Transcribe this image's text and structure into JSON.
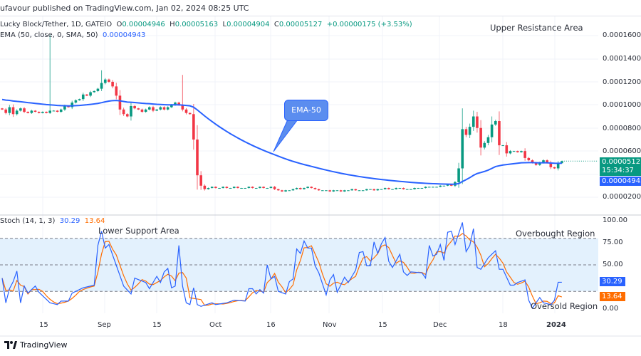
{
  "header": {
    "published": "ufavour published on TradingView.com, Jan 02, 2024 08:25 UTC"
  },
  "legend": {
    "symbol": "Lucky Block/Tether, 1D, GATEIO",
    "o_label": "O",
    "o": "0.00004946",
    "h_label": "H",
    "h": "0.00005163",
    "l_label": "L",
    "l": "0.00004904",
    "c_label": "C",
    "c": "0.00005127",
    "change": "+0.00000175 (+3.53%)",
    "ema_label": "EMA (50, close, 0, SMA, 50)",
    "ema_value": "0.00004943",
    "stoch_label": "Stoch (14, 1, 3)",
    "stoch_k": "30.29",
    "stoch_d": "13.64"
  },
  "annotations": {
    "upper": "Upper Resistance Area",
    "ema_callout": "EMA-50",
    "lower": "Lower Support Area",
    "overbought": "Overbought Region",
    "oversold": "Oversold Region"
  },
  "price_axis": [
    "0.00016000",
    "0.00014000",
    "0.00012000",
    "0.00010000",
    "0.00008000",
    "0.00006000",
    "0.00002000"
  ],
  "price_badges": {
    "last": "0.00005127",
    "countdown": "15:34:37",
    "ema": "0.00004943"
  },
  "stoch_axis": [
    "100.00",
    "75.00",
    "50.00",
    "0.00"
  ],
  "stoch_badges": {
    "k": "30.29",
    "d": "13.64"
  },
  "time_axis": [
    "15",
    "Sep",
    "15",
    "Oct",
    "16",
    "Nov",
    "15",
    "Dec",
    "18",
    "2024"
  ],
  "footer": {
    "brand": "TradingView"
  },
  "colors": {
    "up": "#089981",
    "down": "#f23645",
    "ema": "#2962ff",
    "stoch_k": "#2962ff",
    "stoch_d": "#ff6d00",
    "band": "#e3f1fd"
  },
  "chart_data": [
    {
      "type": "candlestick",
      "title": "Lucky Block/Tether, 1D, GATEIO",
      "x_start": "2023-08-04",
      "x_end": "2024-01-02",
      "ylim": [
        1.4e-05,
        0.00017
      ],
      "closes": [
        9.6e-05,
        9.3e-05,
        9.8e-05,
        9.2e-05,
        9.5e-05,
        9.7e-05,
        9.4e-05,
        9.3e-05,
        9.5e-05,
        9.4e-05,
        9.3e-05,
        9.4e-05,
        9.3e-05,
        9.5e-05,
        9.5e-05,
        9.4e-05,
        9.6e-05,
        9.9e-05,
        9.8e-05,
        0.000102,
        0.000104,
        0.000105,
        0.000109,
        0.000108,
        0.000111,
        0.000112,
        0.000114,
        0.000119,
        0.000122,
        0.00012,
        0.000116,
        0.000108,
        9.6e-05,
        9.2e-05,
        9e-05,
        9.9e-05,
        9.7e-05,
        9.6e-05,
        9.4e-05,
        9.6e-05,
        9.8e-05,
        9.5e-05,
        9.6e-05,
        9.8e-05,
        9.6e-05,
        9.8e-05,
        0.0001,
        0.000102,
        0.0001,
        9.6e-05,
        9.3e-05,
        9.2e-05,
        7e-05,
        3.9e-05,
        3e-05,
        2.7e-05,
        2.8e-05,
        2.9e-05,
        2.8e-05,
        2.8e-05,
        2.9e-05,
        2.8e-05,
        2.8e-05,
        2.9e-05,
        2.8e-05,
        2.8e-05,
        2.8e-05,
        2.9e-05,
        2.8e-05,
        2.8e-05,
        2.9e-05,
        2.8e-05,
        2.8e-05,
        2.9e-05,
        2.7e-05,
        2.6e-05,
        2.5e-05,
        2.6e-05,
        2.6e-05,
        2.7e-05,
        2.8e-05,
        2.7e-05,
        2.8e-05,
        2.9e-05,
        2.8e-05,
        2.7e-05,
        2.6e-05,
        2.6e-05,
        2.6e-05,
        2.5e-05,
        2.6e-05,
        2.6e-05,
        2.5e-05,
        2.6e-05,
        2.6e-05,
        2.7e-05,
        2.6e-05,
        2.6e-05,
        2.6e-05,
        2.7e-05,
        2.7e-05,
        2.6e-05,
        2.7e-05,
        2.7e-05,
        2.8e-05,
        2.7e-05,
        2.7e-05,
        2.8e-05,
        2.8e-05,
        2.7e-05,
        2.7e-05,
        2.7e-05,
        2.8e-05,
        2.8e-05,
        2.8e-05,
        2.9e-05,
        2.9e-05,
        2.9e-05,
        2.9e-05,
        3e-05,
        3e-05,
        3.1e-05,
        3e-05,
        3.3e-05,
        4.5e-05,
        7.9e-05,
        7.4e-05,
        8.1e-05,
        9e-05,
        8e-05,
        6.3e-05,
        6.7e-05,
        7.2e-05,
        8.3e-05,
        8.6e-05,
        6.5e-05,
        6.5e-05,
        5.8e-05,
        6e-05,
        6e-05,
        5.9e-05,
        6e-05,
        5.4e-05,
        5.2e-05,
        5e-05,
        4.8e-05,
        5e-05,
        5.2e-05,
        5e-05,
        4.6e-05,
        4.5e-05,
        4.95e-05,
        5.127e-05
      ],
      "notable_highs": {
        "2023-08-17": 0.000161,
        "2023-08-31": 0.00013,
        "2023-09-22": 0.000126,
        "2023-12-07": 9.7e-05,
        "2023-12-10": 9.5e-05,
        "2023-12-15": 9e-05
      },
      "ema": {
        "name": "EMA (50, close, 0, SMA, 50)",
        "last": 4.943e-05
      }
    },
    {
      "type": "line",
      "title": "Stoch (14, 1, 3)",
      "ylim": [
        0,
        100
      ],
      "bands": {
        "upper": 80,
        "middle": 50,
        "lower": 20
      },
      "k_points": [
        [
          "2023-08-04",
          35
        ],
        [
          "2023-08-05",
          7
        ],
        [
          "2023-08-06",
          23
        ],
        [
          "2023-08-07",
          31
        ],
        [
          "2023-08-08",
          43
        ],
        [
          "2023-08-09",
          7
        ],
        [
          "2023-08-10",
          26
        ],
        [
          "2023-08-11",
          18
        ],
        [
          "2023-08-13",
          26
        ],
        [
          "2023-08-14",
          19
        ],
        [
          "2023-08-15",
          15
        ],
        [
          "2023-08-17",
          7
        ],
        [
          "2023-08-19",
          5
        ],
        [
          "2023-08-20",
          9
        ],
        [
          "2023-08-22",
          9
        ],
        [
          "2023-08-23",
          18
        ],
        [
          "2023-08-26",
          24
        ],
        [
          "2023-08-29",
          27
        ],
        [
          "2023-08-30",
          72
        ],
        [
          "2023-08-31",
          88
        ],
        [
          "2023-09-01",
          69
        ],
        [
          "2023-09-02",
          73
        ],
        [
          "2023-09-06",
          26
        ],
        [
          "2023-09-08",
          17
        ],
        [
          "2023-09-09",
          35
        ],
        [
          "2023-09-12",
          30
        ],
        [
          "2023-09-13",
          23
        ],
        [
          "2023-09-15",
          37
        ],
        [
          "2023-09-16",
          30
        ],
        [
          "2023-09-17",
          42
        ],
        [
          "2023-09-18",
          46
        ],
        [
          "2023-09-19",
          24
        ],
        [
          "2023-09-20",
          26
        ],
        [
          "2023-09-21",
          72
        ],
        [
          "2023-09-22",
          26
        ],
        [
          "2023-09-23",
          7
        ],
        [
          "2023-09-24",
          5
        ],
        [
          "2023-09-25",
          24
        ],
        [
          "2023-09-26",
          5
        ],
        [
          "2023-09-27",
          3
        ],
        [
          "2023-09-30",
          7
        ],
        [
          "2023-10-01",
          5
        ],
        [
          "2023-10-04",
          7
        ],
        [
          "2023-10-06",
          10
        ],
        [
          "2023-10-09",
          9
        ],
        [
          "2023-10-10",
          23
        ],
        [
          "2023-10-11",
          23
        ],
        [
          "2023-10-12",
          17
        ],
        [
          "2023-10-13",
          22
        ],
        [
          "2023-10-14",
          18
        ],
        [
          "2023-10-15",
          50
        ],
        [
          "2023-10-16",
          34
        ],
        [
          "2023-10-17",
          37
        ],
        [
          "2023-10-18",
          20
        ],
        [
          "2023-10-20",
          17
        ],
        [
          "2023-10-21",
          31
        ],
        [
          "2023-10-22",
          34
        ],
        [
          "2023-10-23",
          68
        ],
        [
          "2023-10-24",
          63
        ],
        [
          "2023-10-25",
          77
        ],
        [
          "2023-10-26",
          69
        ],
        [
          "2023-10-27",
          69
        ],
        [
          "2023-10-28",
          49
        ],
        [
          "2023-10-29",
          41
        ],
        [
          "2023-10-31",
          16
        ],
        [
          "2023-11-01",
          33
        ],
        [
          "2023-11-02",
          39
        ],
        [
          "2023-11-03",
          19
        ],
        [
          "2023-11-05",
          36
        ],
        [
          "2023-11-06",
          30
        ],
        [
          "2023-11-08",
          44
        ],
        [
          "2023-11-09",
          64
        ],
        [
          "2023-11-10",
          65
        ],
        [
          "2023-11-11",
          49
        ],
        [
          "2023-11-12",
          49
        ],
        [
          "2023-11-13",
          76
        ],
        [
          "2023-11-14",
          63
        ],
        [
          "2023-11-15",
          74
        ],
        [
          "2023-11-16",
          81
        ],
        [
          "2023-11-17",
          54
        ],
        [
          "2023-11-18",
          47
        ],
        [
          "2023-11-20",
          62
        ],
        [
          "2023-11-21",
          42
        ],
        [
          "2023-11-22",
          38
        ],
        [
          "2023-11-23",
          42
        ],
        [
          "2023-11-26",
          41
        ],
        [
          "2023-11-27",
          35
        ],
        [
          "2023-11-28",
          72
        ],
        [
          "2023-11-29",
          60
        ],
        [
          "2023-11-30",
          62
        ],
        [
          "2023-12-01",
          73
        ],
        [
          "2023-12-02",
          55
        ],
        [
          "2023-12-03",
          87
        ],
        [
          "2023-12-04",
          88
        ],
        [
          "2023-12-05",
          73
        ],
        [
          "2023-12-07",
          98
        ],
        [
          "2023-12-08",
          65
        ],
        [
          "2023-12-09",
          72
        ],
        [
          "2023-12-10",
          91
        ],
        [
          "2023-12-11",
          47
        ],
        [
          "2023-12-12",
          45
        ],
        [
          "2023-12-14",
          58
        ],
        [
          "2023-12-16",
          66
        ],
        [
          "2023-12-17",
          45
        ],
        [
          "2023-12-18",
          45
        ],
        [
          "2023-12-20",
          27
        ],
        [
          "2023-12-21",
          27
        ],
        [
          "2023-12-22",
          30
        ],
        [
          "2023-12-24",
          33
        ],
        [
          "2023-12-25",
          10
        ],
        [
          "2023-12-26",
          1
        ],
        [
          "2023-12-28",
          13
        ],
        [
          "2023-12-29",
          7
        ],
        [
          "2023-12-31",
          5
        ],
        [
          "2024-01-01",
          10
        ],
        [
          "2024-01-02",
          30.29
        ]
      ],
      "k_last": 30.29,
      "d_last": 13.64
    }
  ]
}
